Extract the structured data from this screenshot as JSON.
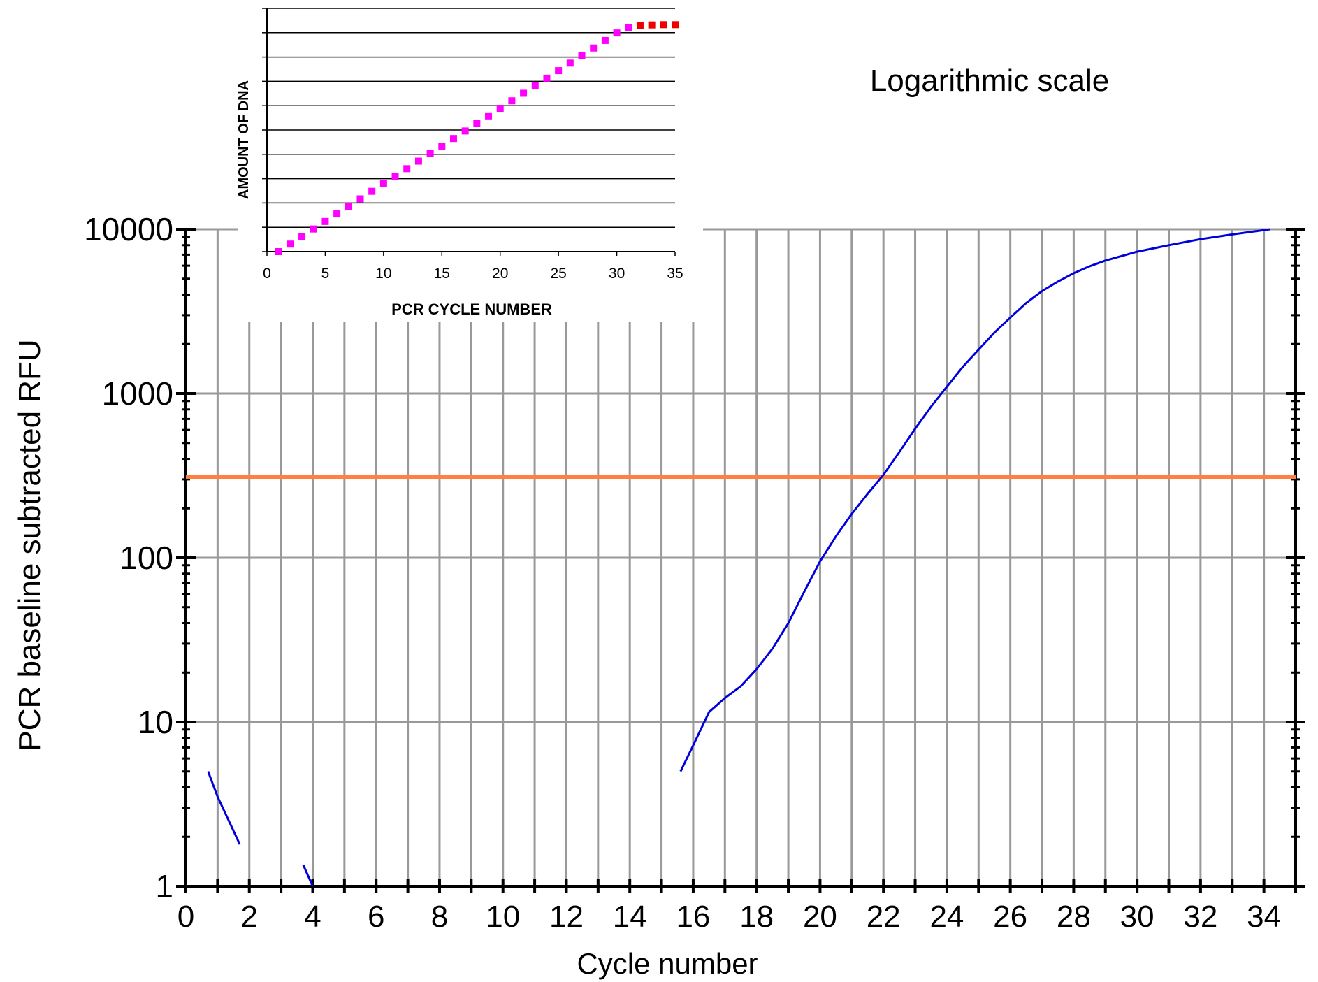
{
  "chart_data": [
    {
      "type": "line",
      "title": "Logarithmic scale",
      "xlabel": "Cycle number",
      "ylabel": "PCR baseline subtracted RFU",
      "yscale": "log",
      "xlim": [
        0,
        35
      ],
      "ylim": [
        1,
        10000
      ],
      "x_ticks": [
        "0",
        "2",
        "4",
        "6",
        "8",
        "10",
        "12",
        "14",
        "16",
        "18",
        "20",
        "22",
        "24",
        "26",
        "28",
        "30",
        "32",
        "34"
      ],
      "y_ticks": [
        "1",
        "10",
        "100",
        "1000",
        "10000"
      ],
      "grid": "vertical every cycle, horizontal at decades",
      "series": [
        {
          "color": "#0000dd",
          "points": [
            [
              0.7,
              5.0
            ],
            [
              1.0,
              3.5
            ],
            [
              1.4,
              2.4
            ],
            [
              1.7,
              1.8
            ],
            null,
            [
              3.7,
              1.35
            ],
            [
              4.0,
              1.0
            ],
            null,
            [
              15.6,
              5.0
            ],
            [
              16.0,
              7.2
            ],
            [
              16.5,
              11.5
            ],
            [
              17.0,
              14.0
            ],
            [
              17.5,
              16.5
            ],
            [
              18.0,
              21.0
            ],
            [
              18.5,
              28.0
            ],
            [
              19.0,
              40.0
            ],
            [
              19.5,
              62.0
            ],
            [
              20.0,
              95.0
            ],
            [
              20.5,
              135.0
            ],
            [
              21.0,
              185.0
            ],
            [
              21.5,
              245.0
            ],
            [
              22.0,
              320.0
            ],
            [
              22.5,
              440.0
            ],
            [
              23.0,
              610.0
            ],
            [
              23.5,
              830.0
            ],
            [
              24.0,
              1100.0
            ],
            [
              24.5,
              1450.0
            ],
            [
              25.0,
              1850.0
            ],
            [
              25.5,
              2350.0
            ],
            [
              26.0,
              2900.0
            ],
            [
              26.5,
              3550.0
            ],
            [
              27.0,
              4200.0
            ],
            [
              27.5,
              4800.0
            ],
            [
              28.0,
              5400.0
            ],
            [
              28.5,
              5950.0
            ],
            [
              29.0,
              6450.0
            ],
            [
              30.0,
              7300.0
            ],
            [
              31.0,
              8000.0
            ],
            [
              32.0,
              8700.0
            ],
            [
              33.0,
              9300.0
            ],
            [
              34.2,
              10000.0
            ]
          ]
        }
      ],
      "threshold": {
        "value": 310,
        "color": "#ff8040"
      }
    },
    {
      "type": "scatter",
      "xlabel": "PCR CYCLE NUMBER",
      "ylabel": "AMOUNT OF DNA",
      "xlim": [
        0,
        35
      ],
      "x_ticks": [
        "0",
        "5",
        "10",
        "15",
        "20",
        "25",
        "30",
        "35"
      ],
      "y_gridlines": 10,
      "grid": "horizontal",
      "series": [
        {
          "color": "#ff00ff",
          "x": [
            1,
            2,
            3,
            4,
            5,
            6,
            7,
            8,
            9,
            10,
            11,
            12,
            13,
            14,
            15,
            16,
            17,
            18,
            19,
            20,
            21,
            22,
            23,
            24,
            25,
            26,
            27,
            28,
            29,
            30,
            31
          ],
          "y": [
            0,
            0.31,
            0.62,
            0.93,
            1.24,
            1.55,
            1.86,
            2.17,
            2.48,
            2.79,
            3.1,
            3.41,
            3.72,
            4.03,
            4.34,
            4.65,
            4.96,
            5.27,
            5.58,
            5.89,
            6.2,
            6.51,
            6.82,
            7.13,
            7.44,
            7.75,
            8.06,
            8.37,
            8.68,
            8.99,
            9.2
          ]
        },
        {
          "color": "#ee0000",
          "x": [
            32,
            33,
            34,
            35
          ],
          "y": [
            9.3,
            9.32,
            9.33,
            9.33
          ]
        }
      ]
    }
  ]
}
